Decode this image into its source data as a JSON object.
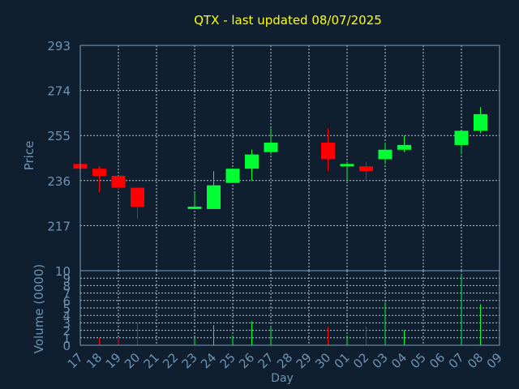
{
  "chart_data": {
    "type": "candlestick",
    "title": "QTX - last updated 08/07/2025",
    "xlabel": "Day",
    "x_ticks": [
      "17",
      "18",
      "19",
      "20",
      "21",
      "22",
      "23",
      "24",
      "25",
      "26",
      "27",
      "28",
      "29",
      "30",
      "01",
      "02",
      "03",
      "04",
      "05",
      "06",
      "07",
      "08",
      "09"
    ],
    "price_panel": {
      "ylabel": "Price",
      "ylim": [
        198,
        293
      ],
      "yticks": [
        217,
        236,
        255,
        274,
        293
      ],
      "grid": true
    },
    "volume_panel": {
      "ylabel": "Volume (0000)",
      "ylim": [
        0,
        10
      ],
      "yticks": [
        0,
        1,
        2,
        3,
        4,
        5,
        6,
        7,
        8,
        9,
        10
      ],
      "grid": true
    },
    "candles": [
      {
        "day": "17",
        "open": 243,
        "close": 241,
        "high": 244,
        "low": 241,
        "volume": 0.0
      },
      {
        "day": "18",
        "open": 241,
        "close": 238,
        "high": 242,
        "low": 231,
        "volume": 1.0
      },
      {
        "day": "19",
        "open": 238,
        "close": 233,
        "high": 238,
        "low": 232,
        "volume": 1.0
      },
      {
        "day": "20",
        "open": 233,
        "close": 225,
        "high": 233,
        "low": 220,
        "volume": 3.0
      },
      {
        "day": "23",
        "open": 224,
        "close": 225,
        "high": 231,
        "low": 224,
        "volume": 1.0
      },
      {
        "day": "24",
        "open": 224,
        "close": 234,
        "high": 240,
        "low": 224,
        "volume": 2.7
      },
      {
        "day": "25",
        "open": 235,
        "close": 241,
        "high": 241,
        "low": 235,
        "volume": 1.3
      },
      {
        "day": "26",
        "open": 241,
        "close": 247,
        "high": 249,
        "low": 236,
        "volume": 3.2
      },
      {
        "day": "27",
        "open": 248,
        "close": 252,
        "high": 258,
        "low": 247,
        "volume": 2.5
      },
      {
        "day": "30",
        "open": 252,
        "close": 245,
        "high": 258,
        "low": 240,
        "volume": 2.5
      },
      {
        "day": "01",
        "open": 242,
        "close": 243,
        "high": 244,
        "low": 236,
        "volume": 1.3
      },
      {
        "day": "02",
        "open": 242,
        "close": 240,
        "high": 244,
        "low": 236,
        "volume": 2.5
      },
      {
        "day": "03",
        "open": 245,
        "close": 249,
        "high": 252,
        "low": 243,
        "volume": 5.8
      },
      {
        "day": "04",
        "open": 249,
        "close": 251,
        "high": 255,
        "low": 248,
        "volume": 2.0
      },
      {
        "day": "07",
        "open": 251,
        "close": 257,
        "high": 257,
        "low": 247,
        "volume": 9.5
      },
      {
        "day": "08",
        "open": 257,
        "close": 264,
        "high": 267,
        "low": 256,
        "volume": 5.5
      }
    ],
    "colors": {
      "background": "#0f1f30",
      "up": "#00ff33",
      "down": "#ff0000",
      "axis_text": "#6e93b3",
      "title": "#ffff00",
      "frame": "#7c9dbd",
      "grid": "#b8c8d8"
    }
  }
}
